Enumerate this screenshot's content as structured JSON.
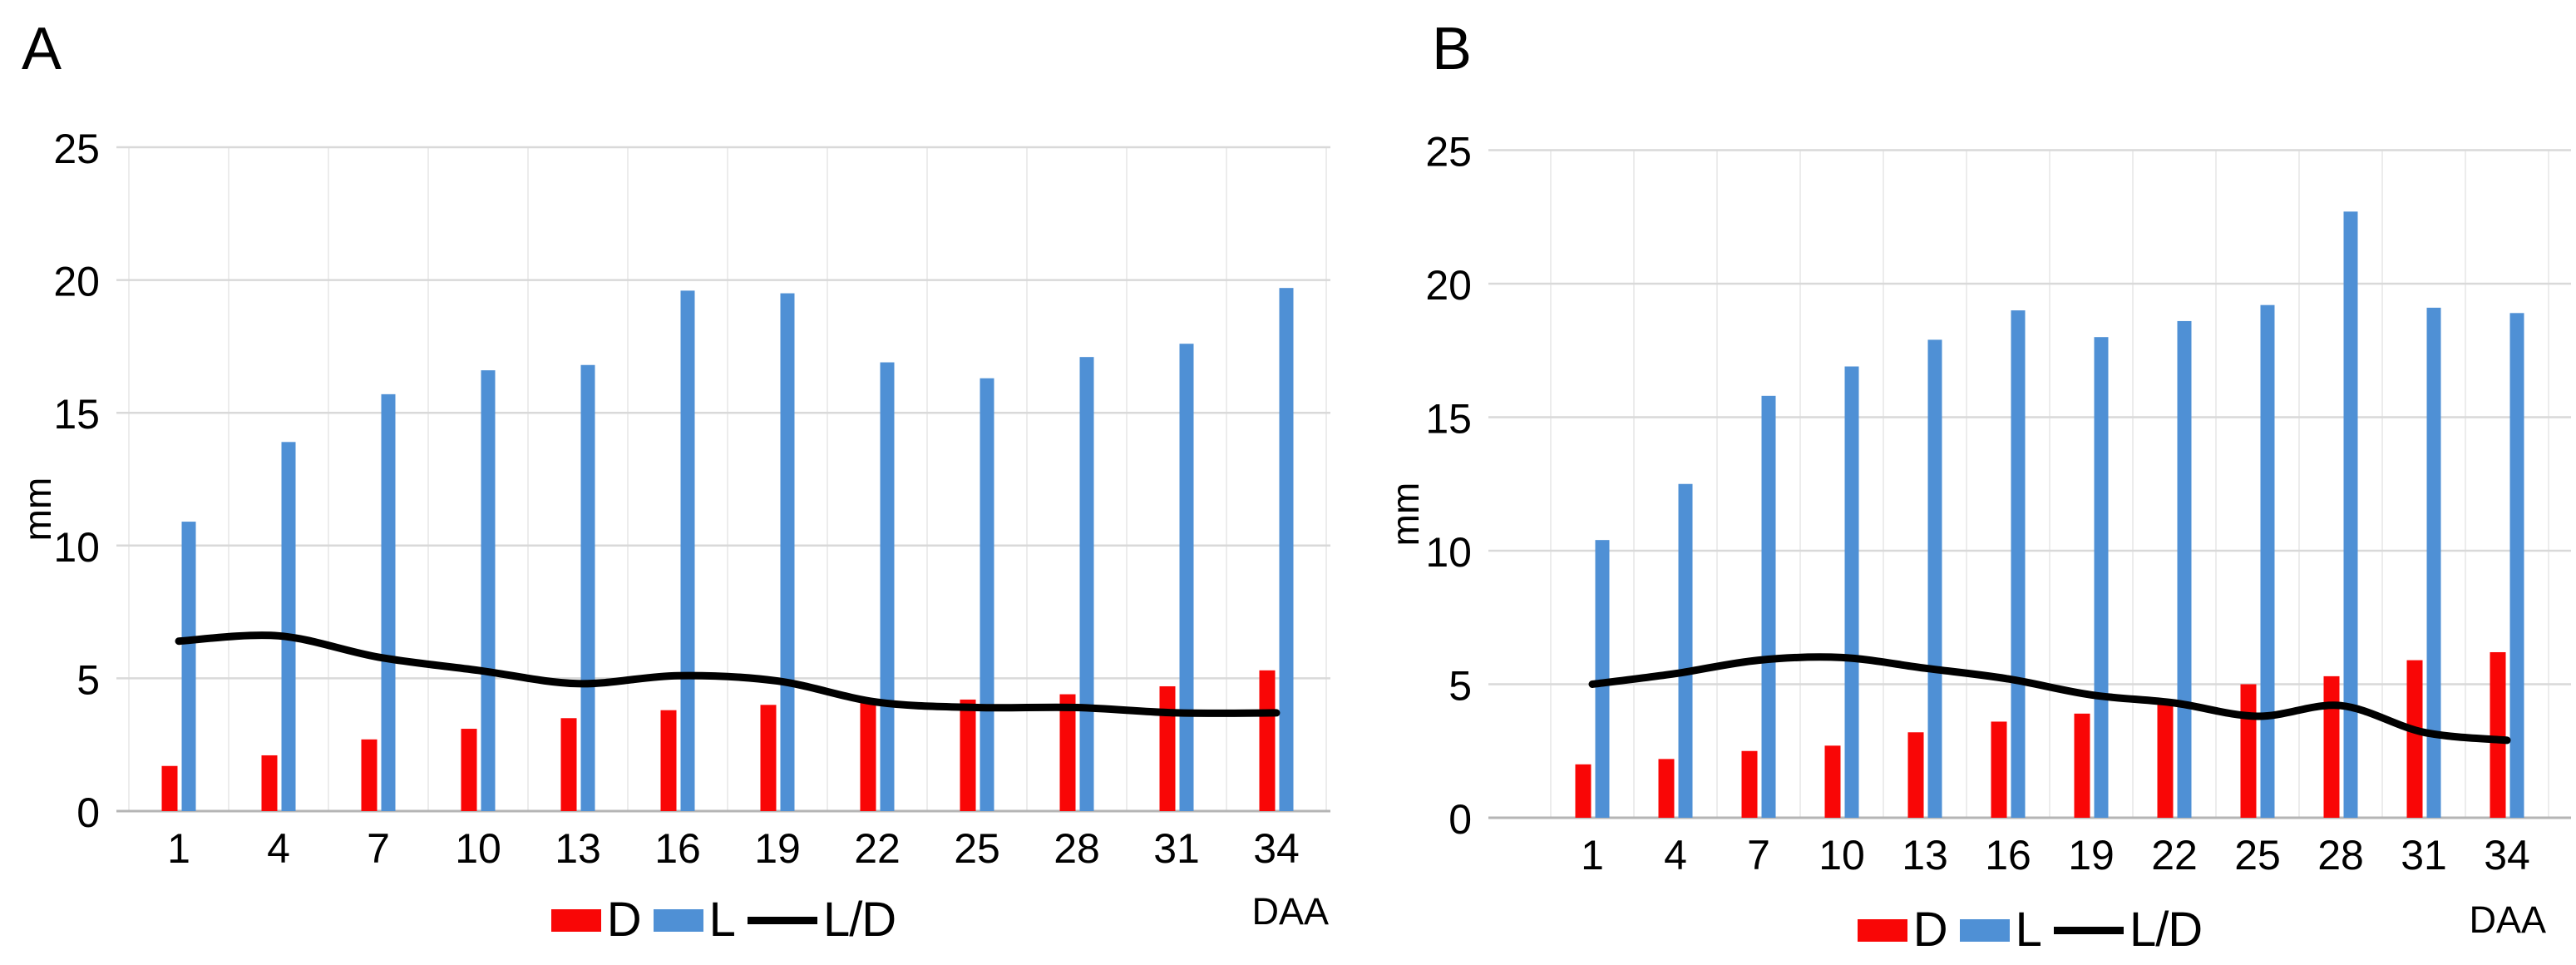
{
  "figure": {
    "background": "#ffffff",
    "panels": [
      "A",
      "B"
    ]
  },
  "colors": {
    "bar_d": "#f90606",
    "bar_l": "#4f90d5",
    "line_ld": "#000000",
    "gridline": "#d9d9d9",
    "vertical_gridline": "#ececec",
    "axis_line": "#b5b5b5",
    "text": "#000000"
  },
  "chart_data": [
    {
      "id": "A",
      "title": "A",
      "type": "bar+line",
      "categories": [
        1,
        4,
        7,
        10,
        13,
        16,
        19,
        22,
        25,
        28,
        31,
        34
      ],
      "series": [
        {
          "name": "D",
          "type": "bar",
          "color": "#f90606",
          "values": [
            1.7,
            2.1,
            2.7,
            3.1,
            3.5,
            3.8,
            4.0,
            4.1,
            4.2,
            4.4,
            4.7,
            5.3
          ]
        },
        {
          "name": "L",
          "type": "bar",
          "color": "#4f90d5",
          "values": [
            10.9,
            13.9,
            15.7,
            16.6,
            16.8,
            19.6,
            19.5,
            16.9,
            16.3,
            17.1,
            17.6,
            19.7
          ]
        },
        {
          "name": "L/D",
          "type": "line",
          "color": "#000000",
          "values": [
            6.4,
            6.6,
            5.8,
            5.3,
            4.8,
            5.1,
            4.9,
            4.1,
            3.9,
            3.9,
            3.7,
            3.7
          ]
        }
      ],
      "xlabel": "DAA",
      "ylabel": "mm",
      "ylim": [
        0,
        25
      ],
      "yticks": [
        0,
        5,
        10,
        15,
        20,
        25
      ],
      "grid": "horizontal",
      "legend_position": "bottom"
    },
    {
      "id": "B",
      "title": "B",
      "type": "bar+line",
      "categories": [
        1,
        4,
        7,
        10,
        13,
        16,
        19,
        22,
        25,
        28,
        31,
        34
      ],
      "series": [
        {
          "name": "D",
          "type": "bar",
          "color": "#f90606",
          "values": [
            2.0,
            2.2,
            2.5,
            2.7,
            3.2,
            3.6,
            3.9,
            4.3,
            5.0,
            5.3,
            5.9,
            6.2
          ]
        },
        {
          "name": "L",
          "type": "bar",
          "color": "#4f90d5",
          "values": [
            10.4,
            12.5,
            15.8,
            16.9,
            17.9,
            19.0,
            18.0,
            18.6,
            19.2,
            22.7,
            19.1,
            18.9
          ]
        },
        {
          "name": "L/D",
          "type": "line",
          "color": "#000000",
          "values": [
            5.0,
            5.4,
            5.9,
            6.0,
            5.6,
            5.2,
            4.6,
            4.3,
            3.8,
            4.2,
            3.2,
            2.9
          ]
        }
      ],
      "xlabel": "DAA",
      "ylabel": "mm",
      "ylim": [
        0,
        25
      ],
      "yticks": [
        0,
        5,
        10,
        15,
        20,
        25
      ],
      "grid": "horizontal",
      "legend_position": "bottom"
    }
  ]
}
